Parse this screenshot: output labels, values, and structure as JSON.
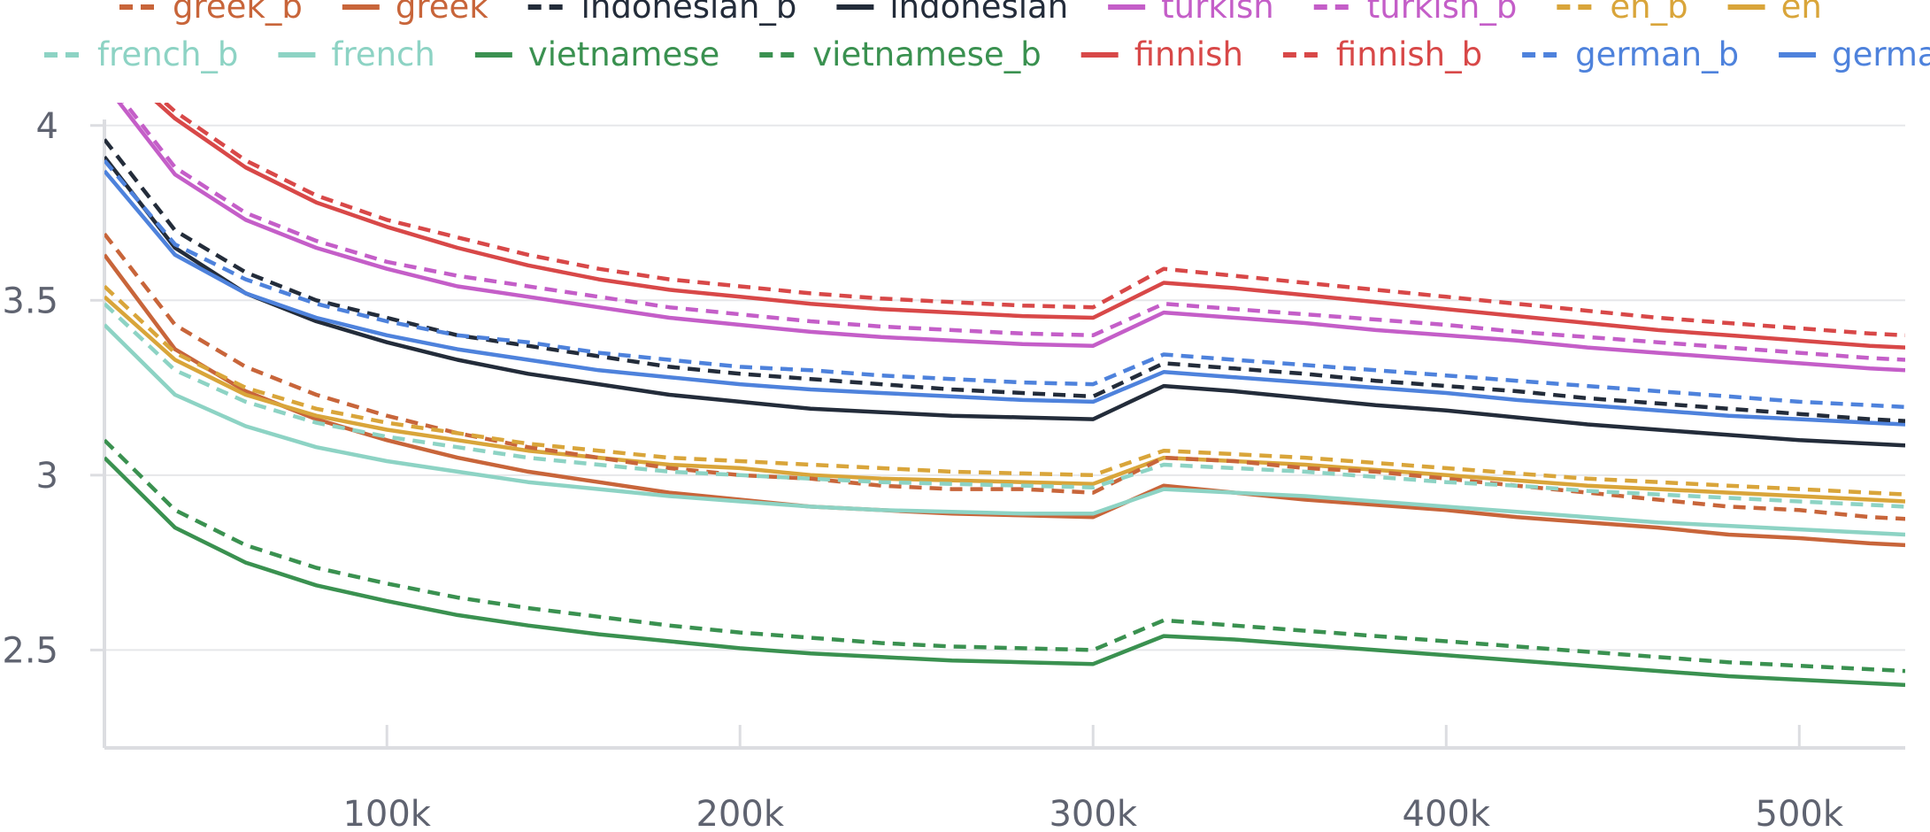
{
  "chart_data": {
    "type": "line",
    "title": "",
    "xlabel": "",
    "ylabel": "",
    "xlim": [
      20000,
      530000
    ],
    "ylim": [
      2.22,
      4.05
    ],
    "grid": true,
    "legend_position": "top",
    "x_ticks": [
      {
        "value": 100000,
        "label": "100k"
      },
      {
        "value": 200000,
        "label": "200k"
      },
      {
        "value": 300000,
        "label": "300k"
      },
      {
        "value": 400000,
        "label": "400k"
      },
      {
        "value": 500000,
        "label": "500k"
      }
    ],
    "y_ticks": [
      {
        "value": 4,
        "label": "4"
      },
      {
        "value": 3.5,
        "label": "3.5"
      },
      {
        "value": 3,
        "label": "3"
      },
      {
        "value": 2.5,
        "label": "2.5"
      }
    ],
    "x": [
      20000,
      40000,
      60000,
      80000,
      100000,
      120000,
      140000,
      160000,
      180000,
      200000,
      220000,
      240000,
      260000,
      280000,
      300000,
      320000,
      340000,
      360000,
      380000,
      400000,
      420000,
      440000,
      460000,
      480000,
      500000,
      520000,
      530000
    ],
    "series": [
      {
        "name": "greek_b",
        "color": "#c8653a",
        "dash": true,
        "values": [
          3.69,
          3.43,
          3.31,
          3.23,
          3.17,
          3.12,
          3.08,
          3.05,
          3.02,
          3.0,
          2.99,
          2.97,
          2.96,
          2.96,
          2.95,
          3.05,
          3.04,
          3.02,
          3.01,
          2.99,
          2.97,
          2.95,
          2.93,
          2.91,
          2.9,
          2.88,
          2.875
        ]
      },
      {
        "name": "greek",
        "color": "#c8653a",
        "dash": false,
        "values": [
          3.63,
          3.36,
          3.24,
          3.16,
          3.1,
          3.05,
          3.01,
          2.98,
          2.95,
          2.93,
          2.91,
          2.9,
          2.89,
          2.885,
          2.88,
          2.97,
          2.95,
          2.93,
          2.915,
          2.9,
          2.88,
          2.865,
          2.85,
          2.83,
          2.82,
          2.805,
          2.8
        ]
      },
      {
        "name": "indonesian_b",
        "color": "#232c3a",
        "dash": true,
        "values": [
          3.96,
          3.7,
          3.58,
          3.5,
          3.45,
          3.4,
          3.37,
          3.34,
          3.31,
          3.29,
          3.275,
          3.26,
          3.245,
          3.235,
          3.225,
          3.32,
          3.305,
          3.29,
          3.27,
          3.255,
          3.24,
          3.22,
          3.205,
          3.19,
          3.175,
          3.16,
          3.155
        ]
      },
      {
        "name": "indonesian",
        "color": "#232c3a",
        "dash": false,
        "values": [
          3.91,
          3.65,
          3.52,
          3.44,
          3.38,
          3.33,
          3.29,
          3.26,
          3.23,
          3.21,
          3.19,
          3.18,
          3.17,
          3.165,
          3.16,
          3.255,
          3.24,
          3.22,
          3.2,
          3.185,
          3.165,
          3.145,
          3.13,
          3.115,
          3.1,
          3.09,
          3.085
        ]
      },
      {
        "name": "turkish",
        "color": "#c45ec8",
        "dash": false,
        "values": [
          4.12,
          3.86,
          3.73,
          3.65,
          3.59,
          3.54,
          3.51,
          3.48,
          3.45,
          3.43,
          3.41,
          3.395,
          3.385,
          3.375,
          3.37,
          3.465,
          3.45,
          3.435,
          3.415,
          3.4,
          3.385,
          3.365,
          3.35,
          3.335,
          3.32,
          3.305,
          3.3
        ]
      },
      {
        "name": "turkish_b",
        "color": "#c45ec8",
        "dash": true,
        "values": [
          4.14,
          3.88,
          3.75,
          3.67,
          3.61,
          3.57,
          3.54,
          3.51,
          3.48,
          3.46,
          3.44,
          3.425,
          3.415,
          3.405,
          3.4,
          3.49,
          3.475,
          3.46,
          3.445,
          3.43,
          3.41,
          3.395,
          3.38,
          3.365,
          3.35,
          3.335,
          3.33
        ]
      },
      {
        "name": "en_b",
        "color": "#d9a53a",
        "dash": true,
        "values": [
          3.54,
          3.35,
          3.25,
          3.19,
          3.15,
          3.12,
          3.09,
          3.07,
          3.05,
          3.04,
          3.03,
          3.02,
          3.01,
          3.005,
          3.0,
          3.07,
          3.06,
          3.05,
          3.035,
          3.02,
          3.005,
          2.99,
          2.98,
          2.97,
          2.96,
          2.95,
          2.945
        ]
      },
      {
        "name": "en",
        "color": "#d9a53a",
        "dash": false,
        "values": [
          3.51,
          3.33,
          3.23,
          3.17,
          3.13,
          3.1,
          3.07,
          3.05,
          3.03,
          3.02,
          3.0,
          2.99,
          2.985,
          2.98,
          2.975,
          3.05,
          3.04,
          3.03,
          3.015,
          3.0,
          2.985,
          2.97,
          2.96,
          2.95,
          2.94,
          2.93,
          2.925
        ]
      },
      {
        "name": "french_b",
        "color": "#8dd3c4",
        "dash": true,
        "values": [
          3.49,
          3.3,
          3.21,
          3.15,
          3.11,
          3.08,
          3.05,
          3.03,
          3.01,
          3.0,
          2.99,
          2.98,
          2.975,
          2.97,
          2.965,
          3.03,
          3.02,
          3.01,
          2.995,
          2.98,
          2.97,
          2.955,
          2.945,
          2.935,
          2.925,
          2.915,
          2.91
        ]
      },
      {
        "name": "french",
        "color": "#8dd3c4",
        "dash": false,
        "values": [
          3.43,
          3.23,
          3.14,
          3.08,
          3.04,
          3.01,
          2.98,
          2.96,
          2.94,
          2.925,
          2.91,
          2.9,
          2.895,
          2.89,
          2.89,
          2.96,
          2.95,
          2.94,
          2.925,
          2.91,
          2.895,
          2.88,
          2.865,
          2.855,
          2.845,
          2.835,
          2.83
        ]
      },
      {
        "name": "vietnamese",
        "color": "#3a9150",
        "dash": false,
        "values": [
          3.05,
          2.85,
          2.75,
          2.685,
          2.64,
          2.6,
          2.57,
          2.545,
          2.525,
          2.505,
          2.49,
          2.48,
          2.47,
          2.465,
          2.46,
          2.54,
          2.53,
          2.515,
          2.5,
          2.485,
          2.47,
          2.455,
          2.44,
          2.425,
          2.415,
          2.405,
          2.4
        ]
      },
      {
        "name": "vietnamese_b",
        "color": "#3a9150",
        "dash": true,
        "values": [
          3.1,
          2.9,
          2.8,
          2.735,
          2.69,
          2.65,
          2.62,
          2.595,
          2.57,
          2.55,
          2.535,
          2.52,
          2.51,
          2.505,
          2.5,
          2.585,
          2.57,
          2.555,
          2.54,
          2.525,
          2.51,
          2.495,
          2.48,
          2.465,
          2.455,
          2.445,
          2.44
        ]
      },
      {
        "name": "finnish",
        "color": "#d84848",
        "dash": false,
        "values": [
          4.2,
          4.02,
          3.88,
          3.78,
          3.71,
          3.65,
          3.6,
          3.56,
          3.53,
          3.51,
          3.49,
          3.475,
          3.465,
          3.455,
          3.45,
          3.55,
          3.535,
          3.515,
          3.495,
          3.475,
          3.455,
          3.435,
          3.415,
          3.4,
          3.385,
          3.37,
          3.365
        ]
      },
      {
        "name": "finnish_b",
        "color": "#d84848",
        "dash": true,
        "values": [
          4.22,
          4.04,
          3.9,
          3.8,
          3.73,
          3.68,
          3.63,
          3.59,
          3.56,
          3.54,
          3.52,
          3.505,
          3.495,
          3.485,
          3.48,
          3.59,
          3.57,
          3.55,
          3.53,
          3.51,
          3.49,
          3.47,
          3.45,
          3.435,
          3.42,
          3.405,
          3.4
        ]
      },
      {
        "name": "german_b",
        "color": "#4e82dc",
        "dash": true,
        "values": [
          3.9,
          3.66,
          3.56,
          3.49,
          3.44,
          3.4,
          3.38,
          3.35,
          3.33,
          3.31,
          3.3,
          3.285,
          3.275,
          3.265,
          3.26,
          3.345,
          3.33,
          3.315,
          3.3,
          3.285,
          3.27,
          3.255,
          3.24,
          3.225,
          3.21,
          3.2,
          3.195
        ]
      },
      {
        "name": "german",
        "color": "#4e82dc",
        "dash": false,
        "values": [
          3.87,
          3.63,
          3.52,
          3.45,
          3.4,
          3.36,
          3.33,
          3.3,
          3.28,
          3.26,
          3.245,
          3.235,
          3.225,
          3.215,
          3.21,
          3.295,
          3.28,
          3.265,
          3.25,
          3.235,
          3.215,
          3.2,
          3.185,
          3.17,
          3.16,
          3.15,
          3.145
        ]
      }
    ]
  }
}
